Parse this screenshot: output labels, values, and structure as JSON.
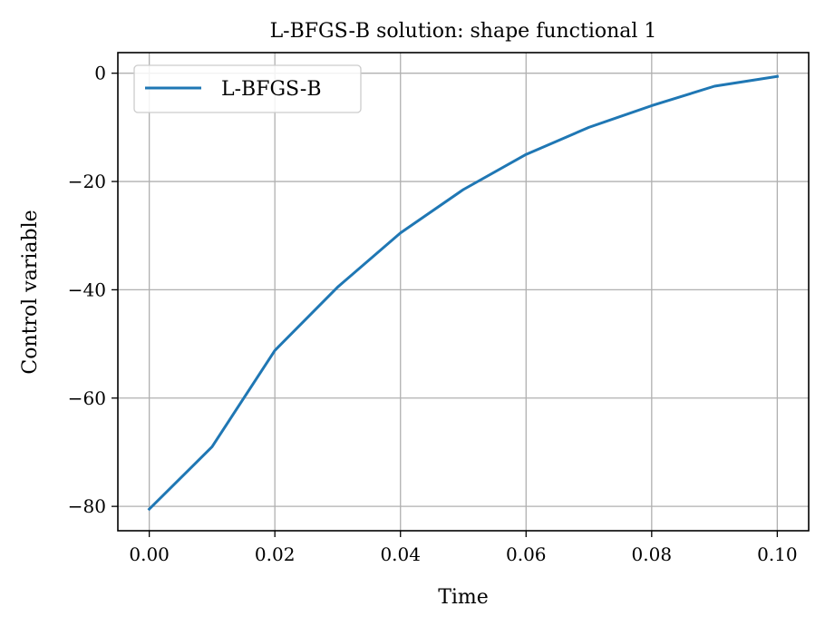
{
  "chart_data": {
    "type": "line",
    "title": "L-BFGS-B solution: shape functional 1",
    "xlabel": "Time",
    "ylabel": "Control variable",
    "xlim": [
      -0.005,
      0.105
    ],
    "ylim": [
      -84.5,
      3.8
    ],
    "x_ticks": [
      0.0,
      0.02,
      0.04,
      0.06,
      0.08,
      0.1
    ],
    "x_tick_labels": [
      "0.00",
      "0.02",
      "0.04",
      "0.06",
      "0.08",
      "0.10"
    ],
    "y_ticks": [
      0,
      -20,
      -40,
      -60,
      -80
    ],
    "y_tick_labels": [
      "0",
      "−20",
      "−40",
      "−60",
      "−80"
    ],
    "grid": true,
    "legend_position": "upper-left",
    "series": [
      {
        "name": "L-BFGS-B",
        "color": "#1f77b4",
        "x": [
          0.0,
          0.01,
          0.02,
          0.03,
          0.04,
          0.05,
          0.06,
          0.07,
          0.08,
          0.09,
          0.1
        ],
        "y": [
          -80.5,
          -69.0,
          -51.2,
          -39.5,
          -29.5,
          -21.5,
          -15.0,
          -10.0,
          -6.0,
          -2.4,
          -0.6
        ]
      }
    ]
  }
}
